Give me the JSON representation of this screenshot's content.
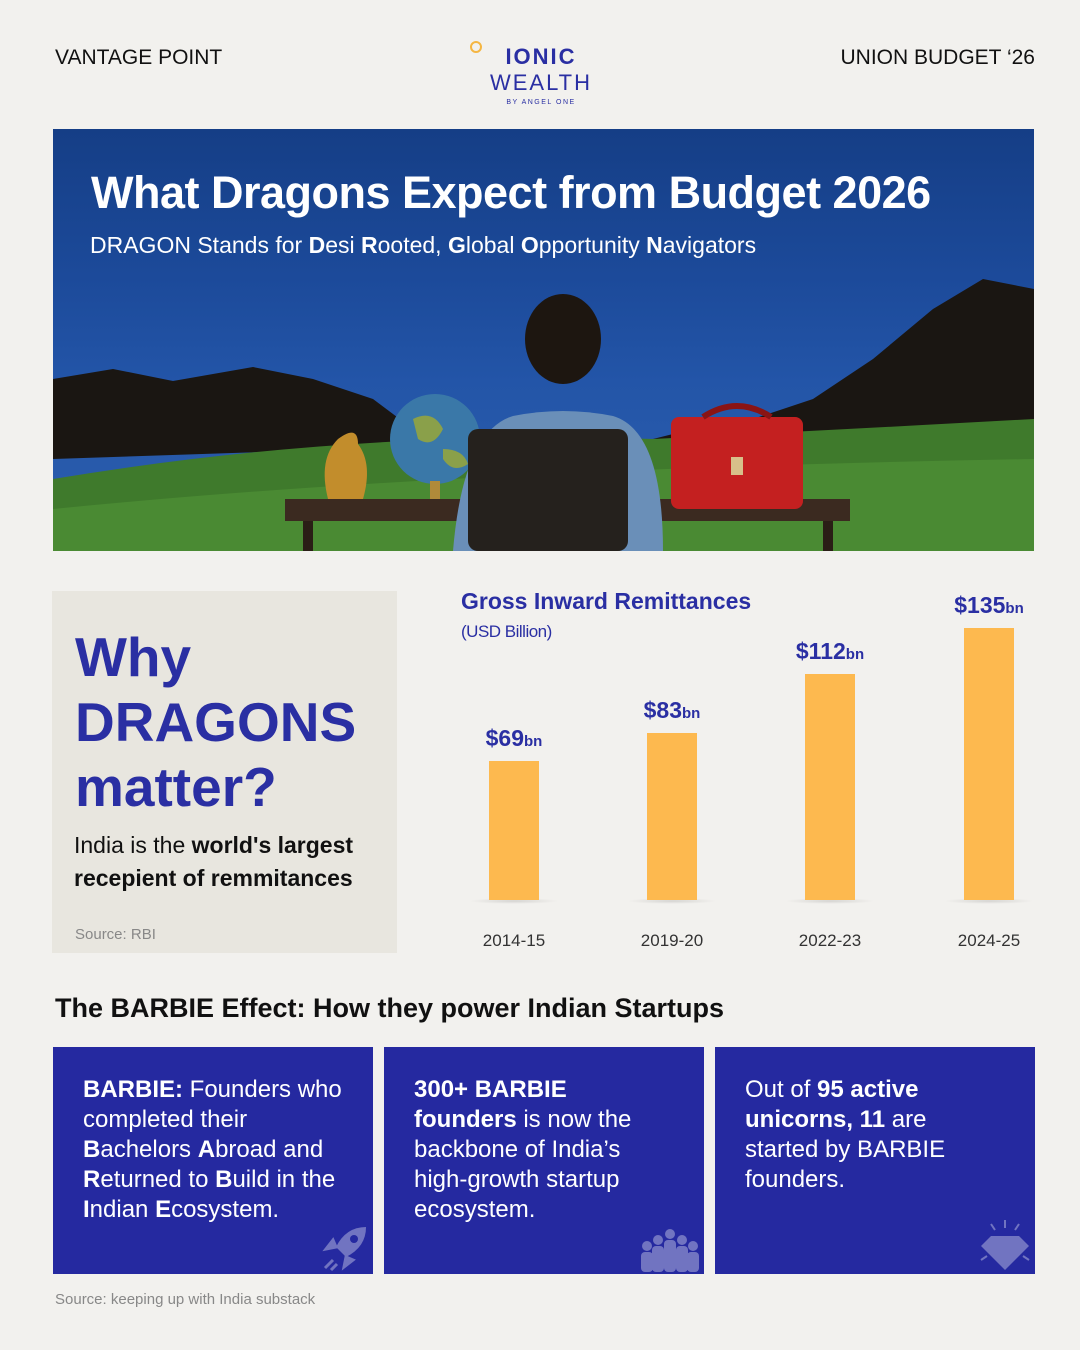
{
  "header": {
    "left": "VANTAGE POINT",
    "right": "UNION BUDGET ‘26",
    "logo_main_bold": "IONIC",
    "logo_main_light": "WEALTH",
    "logo_sub": "BY ANGEL ONE"
  },
  "hero": {
    "title": "What Dragons Expect from Budget 2026",
    "subtitle_parts": [
      "DRAGON Stands for ",
      "D",
      "esi ",
      "R",
      "ooted, ",
      "G",
      "lobal ",
      "O",
      "pportunity ",
      "N",
      "avigators"
    ]
  },
  "why": {
    "heading_lines": [
      "Why",
      "DRAGONS",
      "matter?"
    ],
    "desc_plain": "India is the ",
    "desc_bold": "world's largest recepient of remmitances",
    "source": "Source: RBI"
  },
  "chart_data": {
    "type": "bar",
    "title": "Gross Inward Remittances",
    "subtitle": "(USD Billion)",
    "categories": [
      "2014-15",
      "2019-20",
      "2022-23",
      "2024-25"
    ],
    "values": [
      69,
      83,
      112,
      135
    ],
    "labels": [
      "$69",
      "$83",
      "$112",
      "$135"
    ],
    "label_unit": "bn",
    "bar_color": "#fdb94f",
    "label_color": "#2a2fa3",
    "ylim": [
      0,
      135
    ],
    "grid": false
  },
  "section_title": "The BARBIE Effect: How they power Indian Startups",
  "cards": [
    {
      "icon": "rocket-icon",
      "segments": [
        [
          "BARBIE:",
          true
        ],
        [
          " Founders who completed their ",
          false
        ],
        [
          "B",
          true
        ],
        [
          "achelors ",
          false
        ],
        [
          "A",
          true
        ],
        [
          "broad and ",
          false
        ],
        [
          "R",
          true
        ],
        [
          "eturned to ",
          false
        ],
        [
          "B",
          true
        ],
        [
          "uild in the ",
          false
        ],
        [
          "I",
          true
        ],
        [
          "ndian ",
          false
        ],
        [
          "E",
          true
        ],
        [
          "cosystem.",
          false
        ]
      ]
    },
    {
      "icon": "people-group-icon",
      "segments": [
        [
          "300+ BARBIE founders",
          true
        ],
        [
          " is now the backbone of India’s high-growth startup ecosystem.",
          false
        ]
      ]
    },
    {
      "icon": "diamond-icon",
      "segments": [
        [
          "Out of ",
          false
        ],
        [
          "95 active unicorns, 11",
          true
        ],
        [
          " are started by BARBIE founders.",
          false
        ]
      ]
    }
  ],
  "footer_source": "Source: keeping up with India substack",
  "colors": {
    "brand": "#2a2fa3",
    "card_bg": "#2529a0",
    "accent": "#fdb94f",
    "background": "#f2f1ee"
  }
}
